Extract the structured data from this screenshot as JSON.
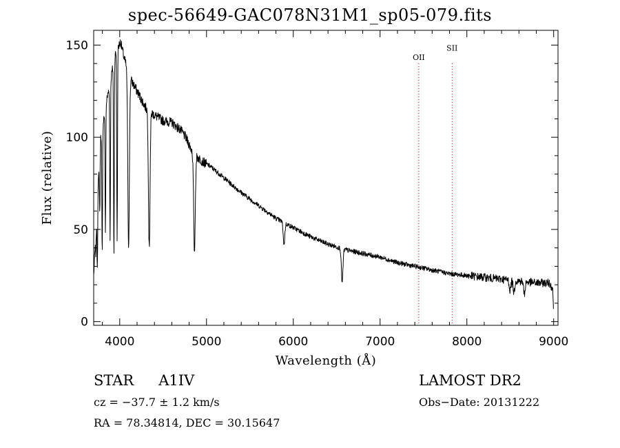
{
  "title": "spec-56649-GAC078N31M1_sp05-079.fits",
  "chart_data": {
    "type": "line",
    "title": "spec-56649-GAC078N31M1_sp05-079.fits",
    "xlabel": "Wavelength (Å)",
    "ylabel": "Flux (relative)",
    "xlim": [
      3700,
      9050
    ],
    "ylim": [
      -2,
      158
    ],
    "x_ticks": [
      4000,
      5000,
      6000,
      7000,
      8000,
      9000
    ],
    "y_ticks": [
      0,
      50,
      100,
      150
    ],
    "line_color": "#000000",
    "marker_color": "#cc0000",
    "continuum": {
      "x": [
        3700,
        3780,
        3850,
        3950,
        4010,
        4050,
        4120,
        4200,
        4300,
        4400,
        4500,
        4600,
        4700,
        4760,
        4850,
        4950,
        5050,
        5200,
        5400,
        5600,
        5800,
        6000,
        6200,
        6400,
        6600,
        6800,
        7000,
        7200,
        7400,
        7600,
        7800,
        8000,
        8200,
        8400,
        8600,
        8800,
        8950,
        8990,
        9000
      ],
      "y": [
        25,
        100,
        120,
        145,
        152,
        143,
        132,
        125,
        116,
        112,
        109,
        108,
        104,
        100,
        91,
        87,
        84,
        78,
        70,
        63,
        56,
        51,
        46,
        42,
        39,
        37,
        35,
        32,
        30,
        28,
        26,
        25,
        24,
        23,
        22,
        21,
        21,
        18,
        2
      ]
    },
    "absorption_lines": [
      {
        "x": 3725,
        "y": 38
      },
      {
        "x": 3742,
        "y": 30
      },
      {
        "x": 3770,
        "y": 60
      },
      {
        "x": 3798,
        "y": 35
      },
      {
        "x": 3835,
        "y": 48
      },
      {
        "x": 3889,
        "y": 45
      },
      {
        "x": 3933,
        "y": 35
      },
      {
        "x": 3970,
        "y": 42
      },
      {
        "x": 4102,
        "y": 41
      },
      {
        "x": 4340,
        "y": 40
      },
      {
        "x": 4861,
        "y": 37
      },
      {
        "x": 5893,
        "y": 42
      },
      {
        "x": 6563,
        "y": 21
      },
      {
        "x": 8498,
        "y": 17
      },
      {
        "x": 8542,
        "y": 16
      },
      {
        "x": 8662,
        "y": 15
      }
    ],
    "line_markers": [
      {
        "label": "OII",
        "x": 7446,
        "label_y": 142
      },
      {
        "label": "SII",
        "x": 7830,
        "label_y": 147
      }
    ]
  },
  "info": {
    "object_type": "STAR",
    "subclass": "A1IV",
    "survey": "LAMOST DR2",
    "cz": "cz = −37.7 ± 1.2 km/s",
    "obs_date": "Obs−Date: 20131222",
    "coords": "RA =  78.34814, DEC =  30.15647"
  }
}
